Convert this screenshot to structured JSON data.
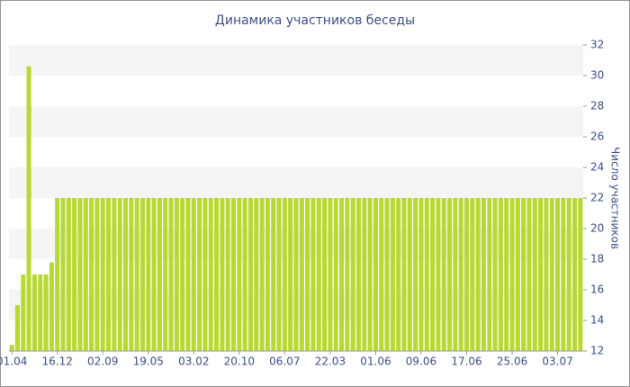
{
  "chart_data": {
    "type": "bar",
    "title": "Динамика участников беседы",
    "y_axis_label": "Число участников",
    "categories": [
      "01.04",
      null,
      null,
      null,
      null,
      null,
      null,
      null,
      "16.12",
      null,
      null,
      null,
      null,
      null,
      null,
      null,
      "02.09",
      null,
      null,
      null,
      null,
      null,
      null,
      null,
      "19.05",
      null,
      null,
      null,
      null,
      null,
      null,
      null,
      "03.02",
      null,
      null,
      null,
      null,
      null,
      null,
      null,
      "20.10",
      null,
      null,
      null,
      null,
      null,
      null,
      null,
      "06.07",
      null,
      null,
      null,
      null,
      null,
      null,
      null,
      "22.03",
      null,
      null,
      null,
      null,
      null,
      null,
      null,
      "01.06",
      null,
      null,
      null,
      null,
      null,
      null,
      null,
      "09.06",
      null,
      null,
      null,
      null,
      null,
      null,
      null,
      "17.06",
      null,
      null,
      null,
      null,
      null,
      null,
      null,
      "25.06",
      null,
      null,
      null,
      null,
      null,
      null,
      null,
      "03.07",
      null,
      null,
      null,
      null
    ],
    "values": [
      12.4,
      15,
      17,
      30.6,
      17,
      17,
      17,
      17.8,
      22,
      22,
      22,
      22,
      22,
      22,
      22,
      22,
      22,
      22,
      22,
      22,
      22,
      22,
      22,
      22,
      22,
      22,
      22,
      22,
      22,
      22,
      22,
      22,
      22,
      22,
      22,
      22,
      22,
      22,
      22,
      22,
      22,
      22,
      22,
      22,
      22,
      22,
      22,
      22,
      22,
      22,
      22,
      22,
      22,
      22,
      22,
      22,
      22,
      22,
      22,
      22,
      22,
      22,
      22,
      22,
      22,
      22,
      22,
      22,
      22,
      22,
      22,
      22,
      22,
      22,
      22,
      22,
      22,
      22,
      22,
      22,
      22,
      22,
      22,
      22,
      22,
      22,
      22,
      22,
      22,
      22,
      22,
      22,
      22,
      22,
      22,
      22,
      22,
      22,
      22,
      22,
      22
    ],
    "color": "#b8d934",
    "ylim": [
      12,
      32
    ],
    "yticks": [
      12,
      14,
      16,
      18,
      20,
      22,
      24,
      26,
      28,
      30,
      32
    ],
    "grid": "bands",
    "y_axis_side": "right"
  }
}
